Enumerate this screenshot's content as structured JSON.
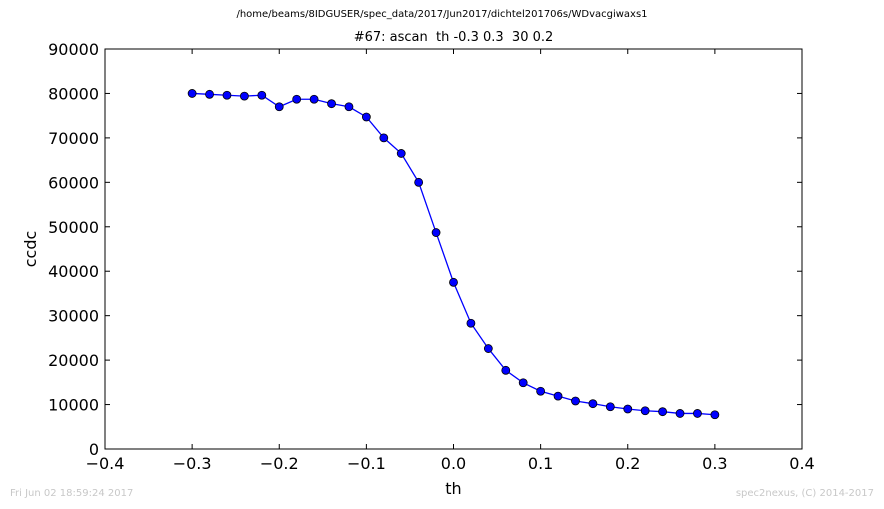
{
  "header": {
    "path": "/home/beams/8IDGUSER/spec_data/2017/Jun2017/dichtel201706s/WDvacgiwaxs1"
  },
  "footer": {
    "timestamp": "Fri Jun 02 18:59:24 2017",
    "credit": "spec2nexus, (C) 2014-2017"
  },
  "colors": {
    "series": "#0000ff",
    "axis": "#000000"
  },
  "chart_data": {
    "type": "line",
    "title": "#67: ascan  th -0.3 0.3  30 0.2",
    "xlabel": "th",
    "ylabel": "ccdc",
    "xlim": [
      -0.4,
      0.4
    ],
    "ylim": [
      0,
      90000
    ],
    "xticks": [
      -0.4,
      -0.3,
      -0.2,
      -0.1,
      0.0,
      0.1,
      0.2,
      0.3,
      0.4
    ],
    "xtick_labels": [
      "−0.4",
      "−0.3",
      "−0.2",
      "−0.1",
      "0.0",
      "0.1",
      "0.2",
      "0.3",
      "0.4"
    ],
    "yticks": [
      0,
      10000,
      20000,
      30000,
      40000,
      50000,
      60000,
      70000,
      80000,
      90000
    ],
    "ytick_labels": [
      "0",
      "10000",
      "20000",
      "30000",
      "40000",
      "50000",
      "60000",
      "70000",
      "80000",
      "90000"
    ],
    "grid": false,
    "marker": "circle",
    "x": [
      -0.3,
      -0.28,
      -0.26,
      -0.24,
      -0.22,
      -0.2,
      -0.18,
      -0.16,
      -0.14,
      -0.12,
      -0.1,
      -0.08,
      -0.06,
      -0.04,
      -0.02,
      0.0,
      0.02,
      0.04,
      0.06,
      0.08,
      0.1,
      0.12,
      0.14,
      0.16,
      0.18,
      0.2,
      0.22,
      0.24,
      0.26,
      0.28,
      0.3
    ],
    "y": [
      80000,
      79800,
      79600,
      79400,
      79600,
      77000,
      78700,
      78700,
      77700,
      77000,
      74700,
      70000,
      66500,
      60000,
      48700,
      37500,
      28300,
      22600,
      17700,
      14900,
      13000,
      11900,
      10800,
      10200,
      9500,
      9000,
      8600,
      8400,
      8000,
      8000,
      7700
    ]
  }
}
